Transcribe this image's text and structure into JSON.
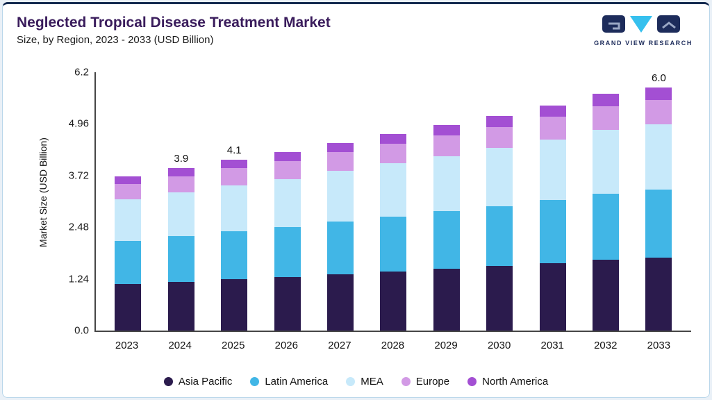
{
  "header": {
    "title": "Neglected Tropical Disease Treatment Market",
    "subtitle": "Size, by Region, 2023 - 2033 (USD Billion)",
    "brand": "GRAND VIEW RESEARCH"
  },
  "chart_data": {
    "type": "bar",
    "stacked": true,
    "title": "Neglected Tropical Disease Treatment Market Size, by Region, 2023 - 2033 (USD Billion)",
    "xlabel": "",
    "ylabel": "Market Size (USD Billion)",
    "ylim": [
      0,
      6.2
    ],
    "yticks": [
      "0.0",
      "1.24",
      "2.48",
      "3.72",
      "4.96",
      "6.2"
    ],
    "grid": false,
    "legend_position": "bottom",
    "categories": [
      "2023",
      "2024",
      "2025",
      "2026",
      "2027",
      "2028",
      "2029",
      "2030",
      "2031",
      "2032",
      "2033"
    ],
    "series": [
      {
        "name": "Asia Pacific",
        "color": "#2b1b4d",
        "values": [
          1.11,
          1.17,
          1.23,
          1.28,
          1.35,
          1.42,
          1.48,
          1.55,
          1.62,
          1.7,
          1.8
        ]
      },
      {
        "name": "Latin America",
        "color": "#41b6e6",
        "values": [
          1.04,
          1.09,
          1.15,
          1.2,
          1.26,
          1.32,
          1.38,
          1.44,
          1.51,
          1.59,
          1.68
        ]
      },
      {
        "name": "MEA",
        "color": "#c7e9fa",
        "values": [
          1.0,
          1.05,
          1.11,
          1.16,
          1.22,
          1.27,
          1.33,
          1.39,
          1.46,
          1.53,
          1.62
        ]
      },
      {
        "name": "Europe",
        "color": "#d29ae5",
        "values": [
          0.37,
          0.39,
          0.41,
          0.43,
          0.45,
          0.47,
          0.49,
          0.51,
          0.54,
          0.57,
          0.6
        ]
      },
      {
        "name": "North America",
        "color": "#a34fd3",
        "values": [
          0.18,
          0.2,
          0.2,
          0.21,
          0.22,
          0.24,
          0.25,
          0.26,
          0.27,
          0.29,
          0.3
        ]
      }
    ],
    "totals": [
      3.7,
      3.9,
      4.1,
      4.28,
      4.5,
      4.72,
      4.93,
      5.15,
      5.4,
      5.68,
      6.0
    ],
    "bar_labels": {
      "2024": "3.9",
      "2025": "4.1",
      "2033": "6.0"
    }
  }
}
